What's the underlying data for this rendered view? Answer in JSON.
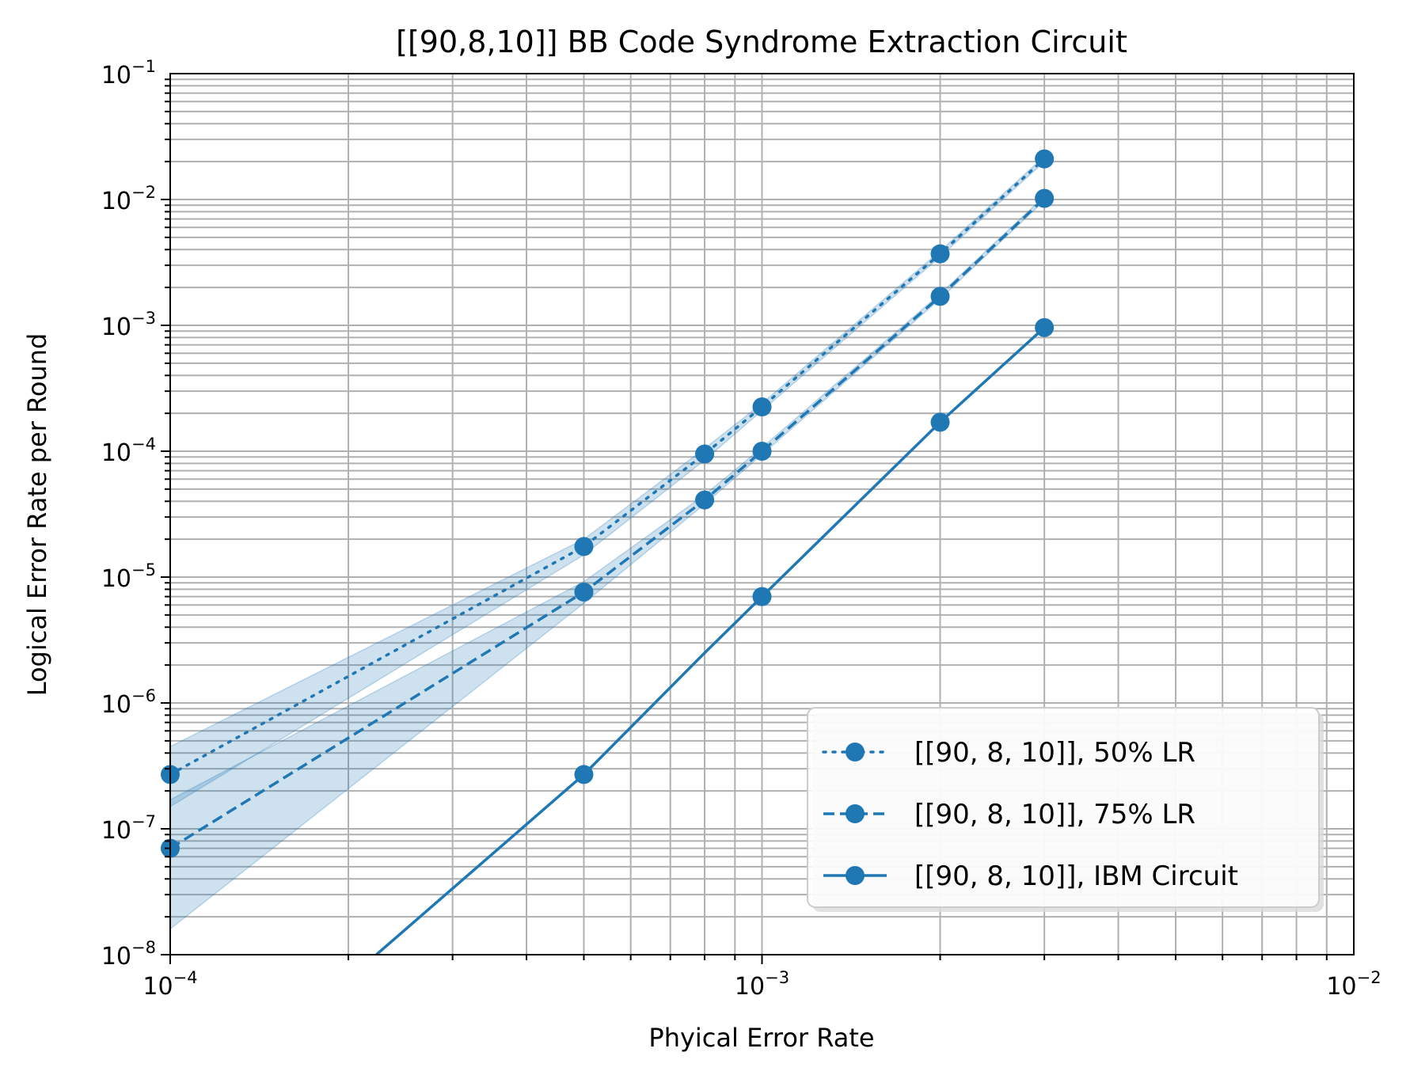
{
  "chart_data": {
    "type": "line",
    "title": "[[90,8,10]] BB Code Syndrome Extraction Circuit",
    "xlabel": "Phyical Error Rate",
    "ylabel": "Logical Error Rate per Round",
    "xscale": "log",
    "yscale": "log",
    "xlim": [
      0.0001,
      0.01
    ],
    "ylim": [
      1e-08,
      0.1
    ],
    "grid": true,
    "legend_position": "lower right",
    "x_ticks": [
      {
        "value": 0.0001,
        "base": "10",
        "exp": "−4"
      },
      {
        "value": 0.001,
        "base": "10",
        "exp": "−3"
      },
      {
        "value": 0.01,
        "base": "10",
        "exp": "−2"
      }
    ],
    "y_ticks": [
      {
        "value": 1e-08,
        "base": "10",
        "exp": "−8"
      },
      {
        "value": 1e-07,
        "base": "10",
        "exp": "−7"
      },
      {
        "value": 1e-06,
        "base": "10",
        "exp": "−6"
      },
      {
        "value": 1e-05,
        "base": "10",
        "exp": "−5"
      },
      {
        "value": 0.0001,
        "base": "10",
        "exp": "−4"
      },
      {
        "value": 0.001,
        "base": "10",
        "exp": "−3"
      },
      {
        "value": 0.01,
        "base": "10",
        "exp": "−2"
      },
      {
        "value": 0.1,
        "base": "10",
        "exp": "−1"
      }
    ],
    "color": "#1f77b4",
    "band_color": "#1f77b4",
    "series": [
      {
        "name": "[[90, 8, 10]], 50% LR",
        "linestyle": "dotted",
        "line_x": [
          0.0001,
          0.0005,
          0.0008,
          0.001,
          0.002,
          0.003
        ],
        "line_y": [
          2.7e-07,
          1.75e-05,
          9.5e-05,
          0.000225,
          0.0037,
          0.021
        ],
        "marker_x": [
          0.0001,
          0.0005,
          0.0008,
          0.001,
          0.002,
          0.003
        ],
        "marker_y": [
          2.7e-07,
          1.75e-05,
          9.5e-05,
          0.000225,
          0.0037,
          0.021
        ],
        "band_lower": [
          1.5e-07,
          1.5e-05,
          8.5e-05,
          0.00021,
          0.0035,
          0.02
        ],
        "band_upper": [
          4.5e-07,
          2e-05,
          0.000105,
          0.00024,
          0.0039,
          0.022
        ]
      },
      {
        "name": "[[90, 8, 10]], 75% LR",
        "linestyle": "dashed",
        "line_x": [
          0.0001,
          0.0005,
          0.0008,
          0.001,
          0.002,
          0.003
        ],
        "line_y": [
          7e-08,
          7.6e-06,
          4.1e-05,
          0.0001,
          0.0017,
          0.0102
        ],
        "marker_x": [
          0.0001,
          0.0005,
          0.0008,
          0.001,
          0.002,
          0.003
        ],
        "marker_y": [
          7e-08,
          7.6e-06,
          4.1e-05,
          0.0001,
          0.0017,
          0.0102
        ],
        "band_lower": [
          1.6e-08,
          6.2e-06,
          3.8e-05,
          9.4e-05,
          0.00162,
          0.0098
        ],
        "band_upper": [
          1.7e-07,
          9.2e-06,
          4.5e-05,
          0.000107,
          0.00178,
          0.0106
        ]
      },
      {
        "name": "[[90, 8, 10]], IBM Circuit",
        "linestyle": "solid",
        "line_x": [
          0.000223,
          0.0005,
          0.0008,
          0.001,
          0.002,
          0.003
        ],
        "line_y": [
          1e-08,
          2.7e-07,
          2.5e-06,
          7e-06,
          0.00017,
          0.00096
        ],
        "marker_x": [
          0.0005,
          0.001,
          0.002,
          0.003
        ],
        "marker_y": [
          2.7e-07,
          7e-06,
          0.00017,
          0.00096
        ]
      }
    ]
  }
}
